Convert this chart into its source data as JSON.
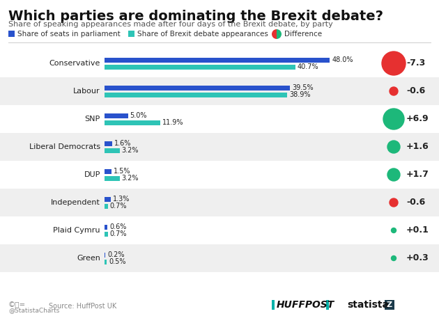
{
  "title": "Which parties are dominating the Brexit debate?",
  "subtitle": "Share of speaking appearances made after four days of the Brexit debate, by party",
  "parties": [
    "Conservative",
    "Labour",
    "SNP",
    "Liberal Democrats",
    "DUP",
    "Independent",
    "Plaid Cymru",
    "Green"
  ],
  "seats_share": [
    48.0,
    39.5,
    5.0,
    1.6,
    1.5,
    1.3,
    0.6,
    0.2
  ],
  "appearance_share": [
    40.7,
    38.9,
    11.9,
    3.2,
    3.2,
    0.7,
    0.7,
    0.5
  ],
  "difference": [
    -7.3,
    -0.6,
    6.9,
    1.6,
    1.7,
    -0.6,
    0.1,
    0.3
  ],
  "diff_labels": [
    "-7.3",
    "-0.6",
    "+6.9",
    "+1.6",
    "+1.7",
    "-0.6",
    "+0.1",
    "+0.3"
  ],
  "seats_color": "#2952cc",
  "appearance_color": "#2ec4b6",
  "positive_color": "#1db87a",
  "negative_color": "#e63030",
  "background_color": "#ffffff",
  "row_alt_color": "#efefef",
  "row_white_color": "#ffffff",
  "max_val": 52,
  "legend_seats": "Share of seats in parliament",
  "legend_appearances": "Share of Brexit debate appearances",
  "legend_diff": "Difference",
  "source_text": "Source: HuffPost UK",
  "footer_left": "@StatistaCharts",
  "huffpost_color": "#00b2a9",
  "statista_box_color": "#1a3a4a",
  "title_fontsize": 14,
  "subtitle_fontsize": 8,
  "party_fontsize": 8,
  "bar_label_fontsize": 7,
  "diff_label_fontsize": 9,
  "legend_fontsize": 7.5
}
